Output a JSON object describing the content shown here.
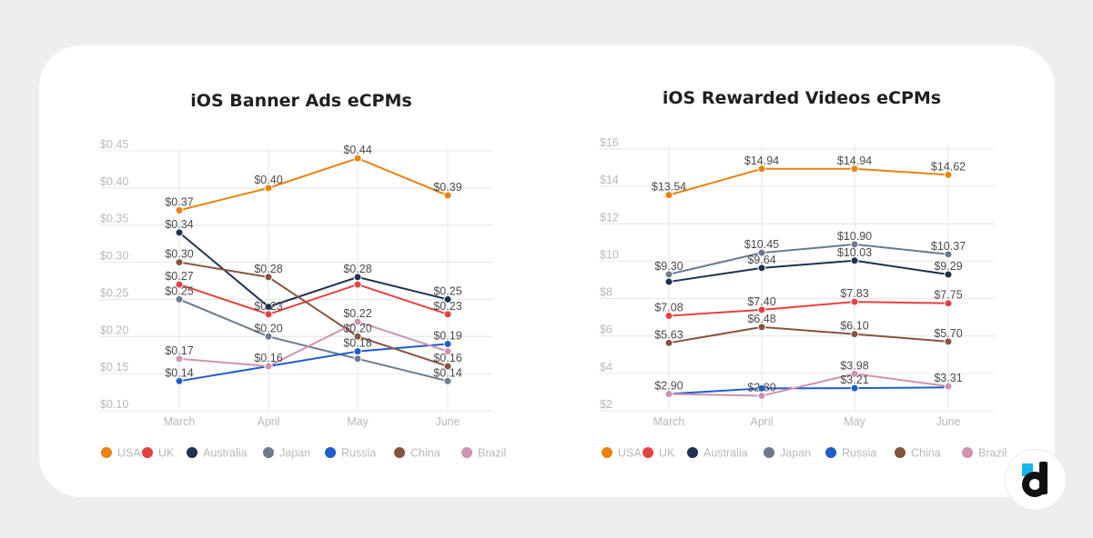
{
  "chart_data": [
    {
      "type": "line",
      "title": "iOS Banner Ads eCPMs",
      "xlabel": "",
      "ylabel": "",
      "categories": [
        "March",
        "April",
        "May",
        "June"
      ],
      "yticks": [
        "$0.10",
        "$0.15",
        "$0.20",
        "$0.25",
        "$0.30",
        "$0.35",
        "$0.40",
        "$0.45"
      ],
      "ylim": [
        0.1,
        0.45
      ],
      "grid": true,
      "legend_position": "bottom",
      "series": [
        {
          "name": "USA",
          "color": "#e8820c",
          "values": [
            0.37,
            0.4,
            0.44,
            0.39
          ],
          "labels": [
            "$0.37",
            "$0.40",
            "$0.44",
            "$0.39"
          ]
        },
        {
          "name": "UK",
          "color": "#e84040",
          "values": [
            0.27,
            0.23,
            0.27,
            0.23
          ],
          "labels": [
            "$0.27",
            "$0.23",
            "",
            "$0.23"
          ]
        },
        {
          "name": "Australia",
          "color": "#1f3150",
          "values": [
            0.34,
            0.24,
            0.28,
            0.25
          ],
          "labels": [
            "$0.34",
            "",
            "$0.28",
            "$0.25"
          ]
        },
        {
          "name": "Japan",
          "color": "#6b7a8f",
          "values": [
            0.25,
            0.2,
            0.17,
            0.14
          ],
          "labels": [
            "$0.25",
            "$0.20",
            "",
            "$0.14"
          ]
        },
        {
          "name": "Russia",
          "color": "#1f5ccc",
          "values": [
            0.14,
            0.16,
            0.18,
            0.19
          ],
          "labels": [
            "$0.14",
            "",
            "$0.18",
            "$0.19"
          ]
        },
        {
          "name": "China",
          "color": "#86533f",
          "values": [
            0.3,
            0.28,
            0.2,
            0.16
          ],
          "labels": [
            "$0.30",
            "$0.28",
            "$0.20",
            "$0.16"
          ]
        },
        {
          "name": "Brazil",
          "color": "#cf92b0",
          "values": [
            0.17,
            0.16,
            0.22,
            0.18
          ],
          "labels": [
            "$0.17",
            "$0.16",
            "$0.22",
            ""
          ]
        }
      ]
    },
    {
      "type": "line",
      "title": "iOS Rewarded Videos eCPMs",
      "xlabel": "",
      "ylabel": "",
      "categories": [
        "March",
        "April",
        "May",
        "June"
      ],
      "yticks": [
        "$2",
        "$4",
        "$6",
        "$8",
        "$10",
        "$12",
        "$14",
        "$16"
      ],
      "ylim": [
        2,
        16
      ],
      "grid": true,
      "legend_position": "bottom",
      "series": [
        {
          "name": "USA",
          "color": "#e8820c",
          "values": [
            13.54,
            14.94,
            14.94,
            14.62
          ],
          "labels": [
            "$13.54",
            "$14.94",
            "$14.94",
            "$14.62"
          ]
        },
        {
          "name": "UK",
          "color": "#e84040",
          "values": [
            7.08,
            7.4,
            7.83,
            7.75
          ],
          "labels": [
            "$7.08",
            "$7.40",
            "$7.83",
            "$7.75"
          ]
        },
        {
          "name": "Australia",
          "color": "#1f3150",
          "values": [
            8.9,
            9.64,
            10.03,
            9.29
          ],
          "labels": [
            "",
            "$9.64",
            "$10.03",
            "$9.29"
          ]
        },
        {
          "name": "Japan",
          "color": "#6b7a8f",
          "values": [
            9.3,
            10.45,
            10.9,
            10.37
          ],
          "labels": [
            "$9.30",
            "$10.45",
            "$10.90",
            "$10.37"
          ]
        },
        {
          "name": "Russia",
          "color": "#1f5ccc",
          "values": [
            2.9,
            3.2,
            3.21,
            3.25
          ],
          "labels": [
            "",
            "",
            "$3.21",
            ""
          ]
        },
        {
          "name": "China",
          "color": "#86533f",
          "values": [
            5.63,
            6.48,
            6.1,
            5.7
          ],
          "labels": [
            "$5.63",
            "$6.48",
            "$6.10",
            "$5.70"
          ]
        },
        {
          "name": "Brazil",
          "color": "#cf92b0",
          "values": [
            2.9,
            2.8,
            3.98,
            3.31
          ],
          "labels": [
            "$2.90",
            "$2.80",
            "$3.98",
            "$3.31"
          ]
        }
      ]
    }
  ],
  "logo": {
    "name": "devtodev",
    "accent": "#1ab4f0"
  }
}
